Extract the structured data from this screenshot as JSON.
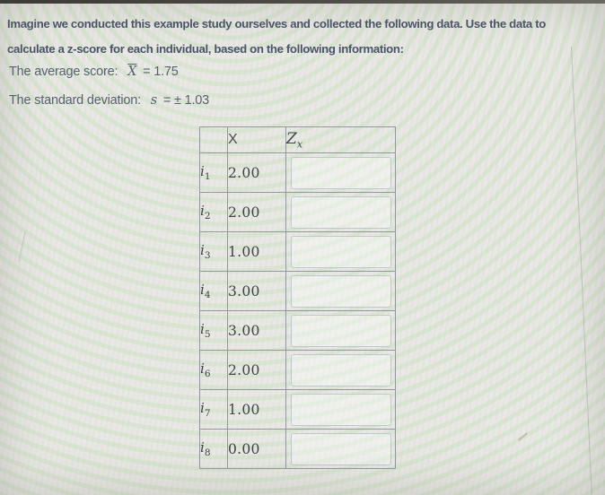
{
  "intro": {
    "line1": "Imagine we conducted this example study ourselves and collected the following data. Use the data to",
    "line2": "calculate a z-score for each individual, based on the following information:"
  },
  "stats": {
    "average_label": "The average score:",
    "average_symbol": "X",
    "average_value": "= 1.75",
    "sd_label": "The standard deviation:",
    "sd_symbol": "s",
    "sd_value": "= ± 1.03"
  },
  "table": {
    "headers": {
      "label": "",
      "x": "X",
      "z_base": "Z",
      "z_sub": "x"
    },
    "rows": [
      {
        "id_base": "i",
        "id_sub": "1",
        "x": "2.00",
        "z": ""
      },
      {
        "id_base": "i",
        "id_sub": "2",
        "x": "2.00",
        "z": ""
      },
      {
        "id_base": "i",
        "id_sub": "3",
        "x": "1.00",
        "z": ""
      },
      {
        "id_base": "i",
        "id_sub": "4",
        "x": "3.00",
        "z": ""
      },
      {
        "id_base": "i",
        "id_sub": "5",
        "x": "3.00",
        "z": ""
      },
      {
        "id_base": "i",
        "id_sub": "6",
        "x": "2.00",
        "z": ""
      },
      {
        "id_base": "i",
        "id_sub": "7",
        "x": "1.00",
        "z": ""
      },
      {
        "id_base": "i",
        "id_sub": "8",
        "x": "0.00",
        "z": ""
      }
    ]
  },
  "colors": {
    "background": "#e9e8e4",
    "heading_text": "#4b5468",
    "body_text": "#57616f",
    "table_text": "#3e4246",
    "table_border": "#94989c",
    "input_border": "#bfc8cf",
    "top_strip": "#403d3a"
  }
}
